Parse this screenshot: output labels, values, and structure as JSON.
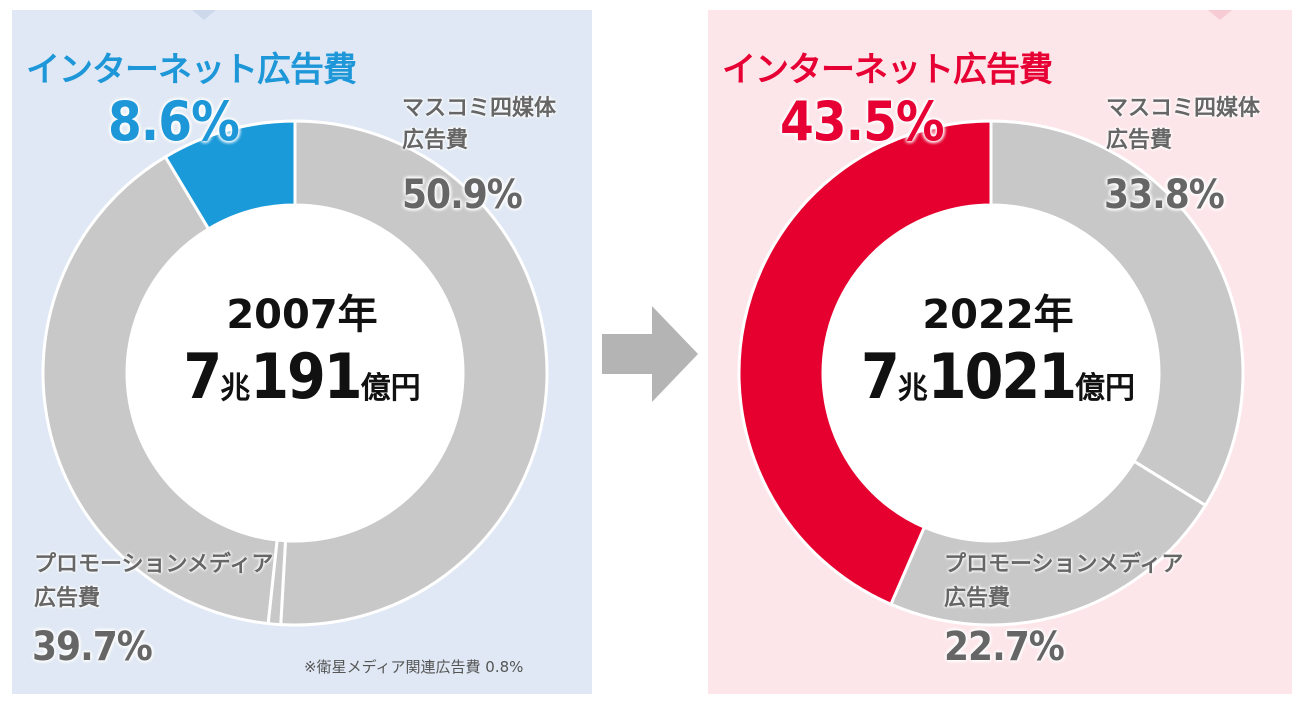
{
  "colors": {
    "internet_2007": "#1a9ad9",
    "internet_2022": "#e6002f",
    "other_segments": "#c8c8c8",
    "segment_border": "#ffffff",
    "arrow": "#b4b4b4"
  },
  "charts": {
    "left": {
      "title": "インターネット広告費",
      "year": "2007年",
      "total_num1": "7",
      "total_unit1": "兆",
      "total_num2": "191",
      "total_unit2": "億円",
      "labels": {
        "internet_pct": "8.6%",
        "mass_media_name_1": "マスコミ四媒体",
        "mass_media_name_2": "広告費",
        "mass_media_pct": "50.9%",
        "promo_name_1": "プロモーションメディア",
        "promo_name_2": "広告費",
        "promo_pct": "39.7%"
      },
      "note": "※衛星メディア関連広告費 0.8%"
    },
    "right": {
      "title": "インターネット広告費",
      "year": "2022年",
      "total_num1": "7",
      "total_unit1": "兆",
      "total_num2": "1021",
      "total_unit2": "億円",
      "labels": {
        "internet_pct": "43.5%",
        "mass_media_name_1": "マスコミ四媒体",
        "mass_media_name_2": "広告費",
        "mass_media_pct": "33.8%",
        "promo_name_1": "プロモーションメディア",
        "promo_name_2": "広告費",
        "promo_pct": "22.7%"
      }
    }
  },
  "chart_data": [
    {
      "type": "pie",
      "donut": true,
      "title": "インターネット広告費",
      "center_label": "2007年 7兆191億円",
      "slices": [
        {
          "name": "マスコミ四媒体広告費",
          "value": 50.9
        },
        {
          "name": "衛星メディア関連広告費",
          "value": 0.8
        },
        {
          "name": "プロモーションメディア広告費",
          "value": 39.7
        },
        {
          "name": "インターネット広告費",
          "value": 8.6
        }
      ]
    },
    {
      "type": "pie",
      "donut": true,
      "title": "インターネット広告費",
      "center_label": "2022年 7兆1021億円",
      "slices": [
        {
          "name": "マスコミ四媒体広告費",
          "value": 33.8
        },
        {
          "name": "プロモーションメディア広告費",
          "value": 22.7
        },
        {
          "name": "インターネット広告費",
          "value": 43.5
        }
      ]
    }
  ]
}
